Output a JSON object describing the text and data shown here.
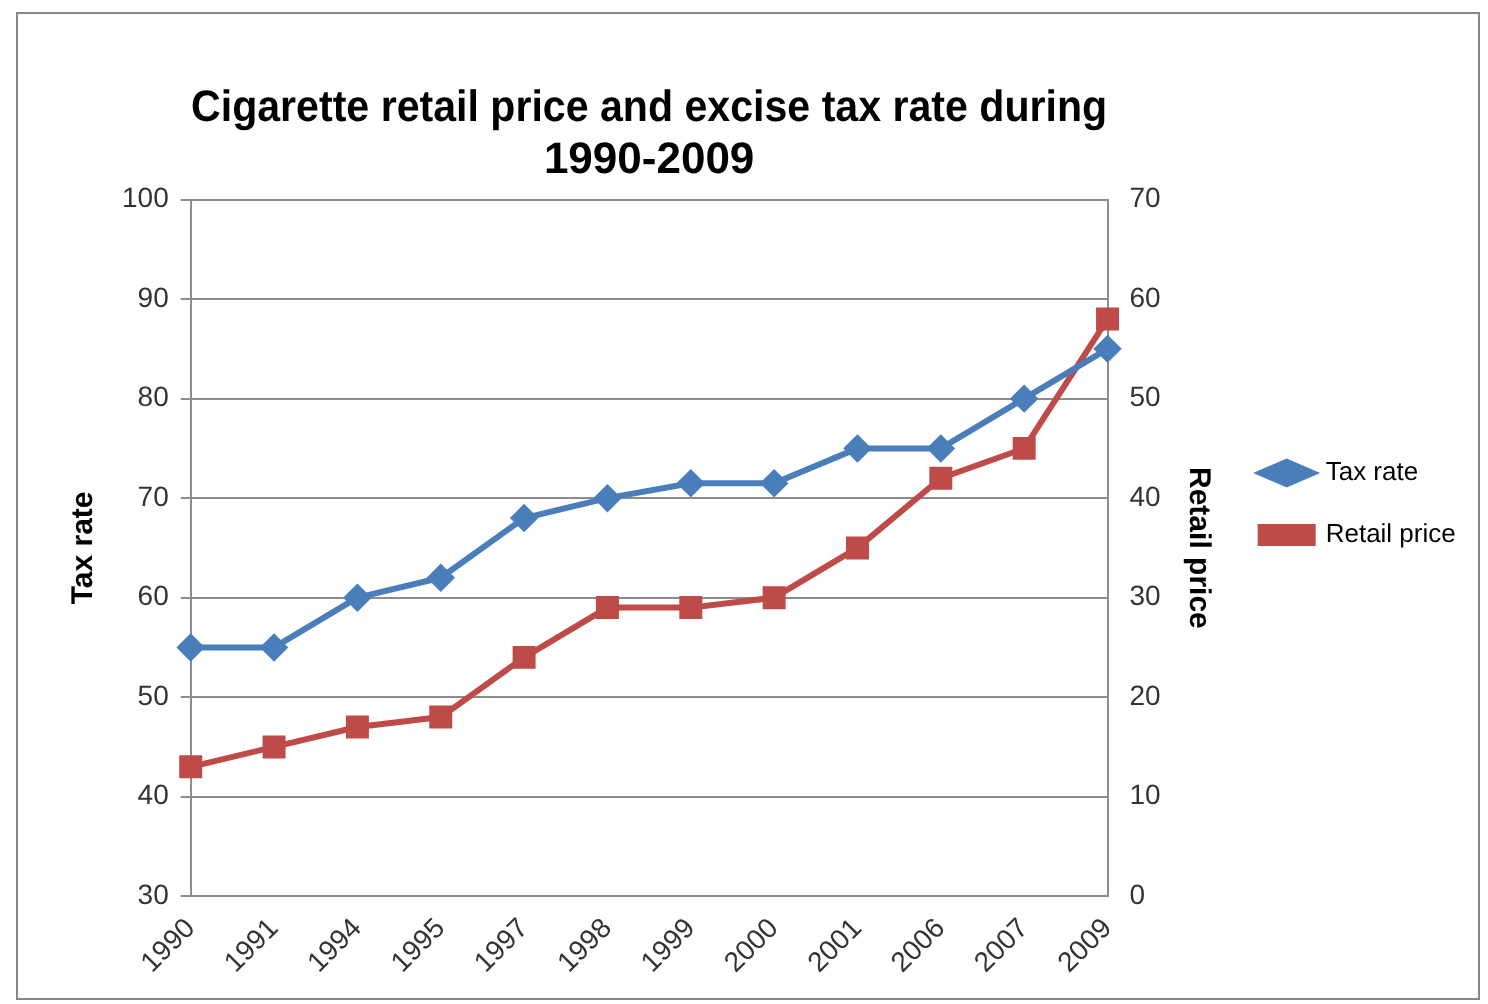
{
  "chart_data": {
    "type": "line",
    "title": "Cigarette retail price and excise tax rate during 1990-2009",
    "categories": [
      "1990",
      "1991",
      "1994",
      "1995",
      "1997",
      "1998",
      "1999",
      "2000",
      "2001",
      "2006",
      "2007",
      "2009"
    ],
    "series": [
      {
        "name": "Tax rate",
        "color": "#4a7ebb",
        "marker": "diamond",
        "values": [
          55,
          55,
          60,
          62,
          68,
          70,
          71.5,
          71.5,
          75,
          75,
          80,
          85
        ]
      },
      {
        "name": "Retail price",
        "color": "#be4b48",
        "marker": "square",
        "axis": "y2",
        "values": [
          13,
          15,
          17,
          18,
          24,
          29,
          29,
          30,
          35,
          42,
          45,
          58
        ]
      }
    ],
    "ylabel": "Tax rate",
    "y2label": "Retail price",
    "ylim": [
      30,
      100
    ],
    "yticks": [
      30,
      40,
      50,
      60,
      70,
      80,
      90,
      100
    ],
    "y2lim": [
      0,
      70
    ],
    "y2ticks": [
      0,
      10,
      20,
      30,
      40,
      50,
      60,
      70
    ],
    "grid": "y",
    "legend": "right"
  }
}
